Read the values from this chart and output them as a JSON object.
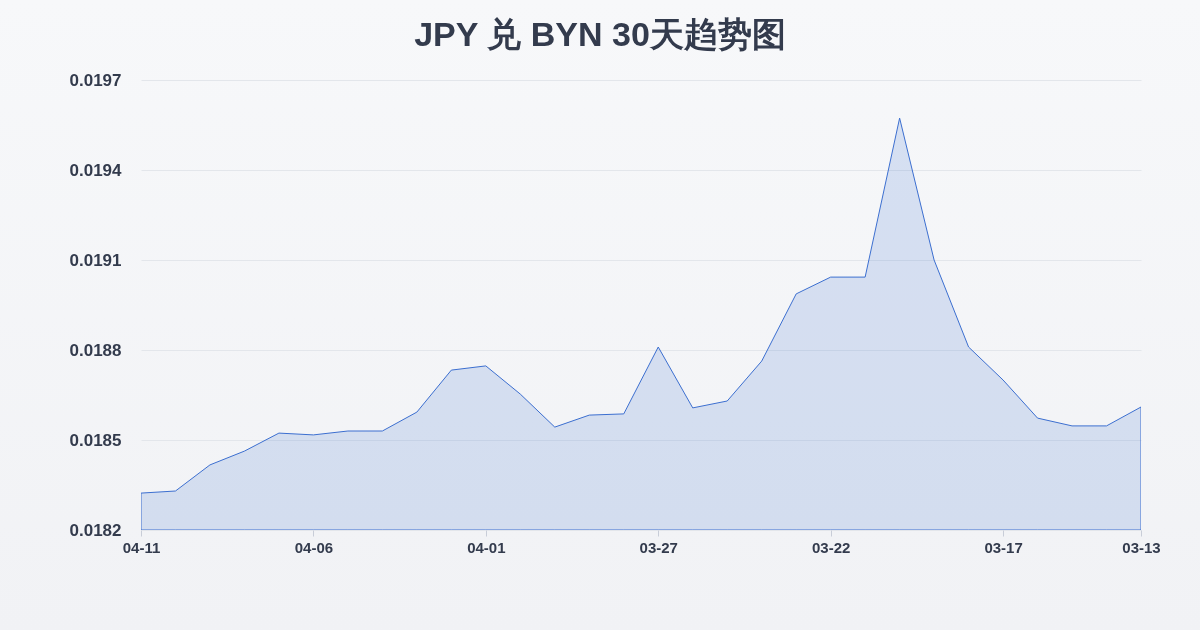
{
  "chart_data": {
    "type": "area",
    "title": "JPY 兑 BYN 30天趋势图",
    "categories": [
      "04-11",
      null,
      null,
      null,
      null,
      "04-06",
      null,
      null,
      null,
      null,
      "04-01",
      null,
      null,
      null,
      null,
      "03-27",
      null,
      null,
      null,
      null,
      "03-22",
      null,
      null,
      null,
      null,
      "03-17",
      null,
      null,
      null,
      "03-13"
    ],
    "series": [
      {
        "color": "#3c6fd0",
        "values": [
          0.018323,
          0.01833,
          0.018417,
          0.018463,
          0.018523,
          0.018517,
          0.01853,
          0.01853,
          0.018593,
          0.018733,
          0.018747,
          0.018653,
          0.018543,
          0.018583,
          0.018587,
          0.01881,
          0.018607,
          0.01863,
          0.018763,
          0.018987,
          0.019043,
          0.019043,
          0.019573,
          0.0191,
          0.01881,
          0.0187,
          0.018573,
          0.018547,
          0.018547,
          0.01861
        ]
      }
    ],
    "ylim": [
      0.0182,
      0.0197
    ],
    "yticks": [
      0.0182,
      0.0185,
      0.0188,
      0.0191,
      0.0194,
      0.0197
    ],
    "grid": "y"
  }
}
